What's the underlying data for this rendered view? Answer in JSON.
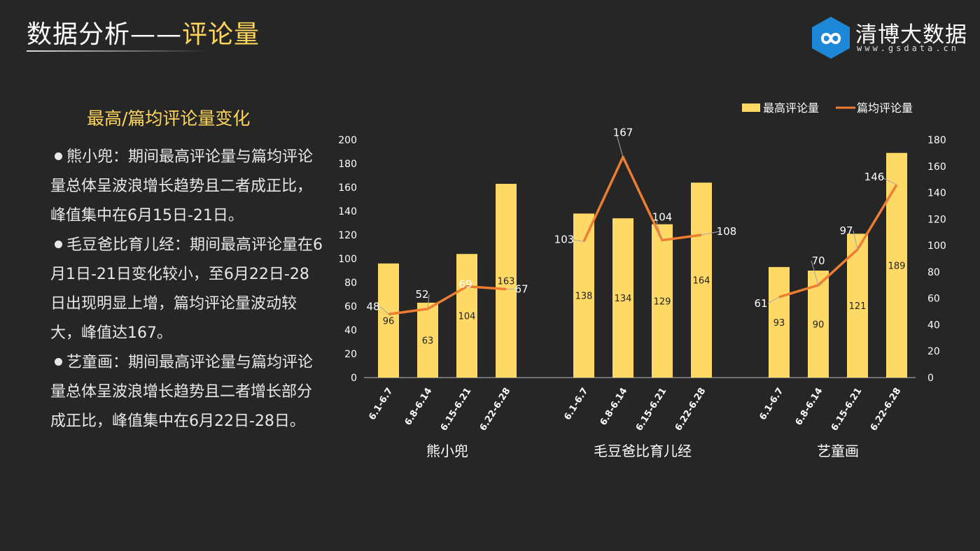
{
  "header": {
    "title_part1": "数据分析——",
    "title_part2": "评论量"
  },
  "brand": {
    "name": "清博大数据",
    "url": "www.gsdata.cn",
    "hex_color": "#1e88d8"
  },
  "sidebar": {
    "subtitle": "最高/篇均评论量变化",
    "items": [
      {
        "text": "熊小兜：期间最高评论量与篇均评论量总体呈波浪增长趋势且二者成正比，峰值集中在6月15日-21日。"
      },
      {
        "text": "毛豆爸比育儿经：期间最高评论量在6月1日-21日变化较小，至6月22日-28日出现明显上增，篇均评论量波动较大，峰值达167。"
      },
      {
        "text": "艺童画：期间最高评论量与篇均评论量总体呈波浪增长趋势且二者增长部分成正比，峰值集中在6月22日-28日。"
      }
    ]
  },
  "chart_data": {
    "type": "bar",
    "legend": [
      "最高评论量",
      "篇均评论量"
    ],
    "legend_position": "top-right",
    "colors": {
      "bar": "#ffd966",
      "line": "#ed7d31"
    },
    "categories": [
      "6.1-6.7",
      "6.8-6.14",
      "6.15-6.21",
      "6.22-6.28"
    ],
    "groups": [
      {
        "name": "熊小兜",
        "max": [
          96,
          63,
          104,
          163
        ],
        "avg": [
          48,
          52,
          69,
          67
        ]
      },
      {
        "name": "毛豆爸比育儿经",
        "max": [
          138,
          134,
          129,
          164
        ],
        "avg": [
          103,
          167,
          104,
          108
        ]
      },
      {
        "name": "艺童画",
        "max": [
          93,
          90,
          121,
          189
        ],
        "avg": [
          61,
          70,
          97,
          146
        ]
      }
    ],
    "y_left": {
      "min": 0,
      "max": 200,
      "ticks": [
        0,
        20,
        40,
        60,
        80,
        100,
        120,
        140,
        160,
        180,
        200
      ]
    },
    "y_right": {
      "min": 0,
      "max": 180,
      "ticks": [
        0,
        20,
        40,
        60,
        80,
        100,
        120,
        140,
        160,
        180
      ]
    },
    "grid": false
  }
}
